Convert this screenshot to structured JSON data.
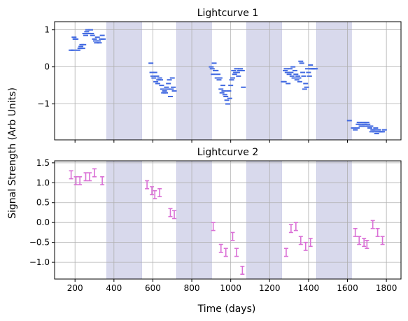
{
  "figure": {
    "xlabel": "Time (days)",
    "ylabel": "Signal Strength (Arb Units)"
  },
  "shaded_intervals": [
    [
      363,
      543
    ],
    [
      722,
      902
    ],
    [
      1082,
      1262
    ],
    [
      1441,
      1621
    ]
  ],
  "shade_color": "#d8d9ec",
  "chart_data": [
    {
      "type": "scatter",
      "title": "Lightcurve 1",
      "xlim": [
        95,
        1875
      ],
      "ylim": [
        -1.97,
        1.22
      ],
      "xticks": [
        200,
        400,
        600,
        800,
        1000,
        1200,
        1400,
        1600,
        1800
      ],
      "yticks": [
        1,
        0,
        -1
      ],
      "ytick_labels": [
        "1",
        "0",
        "−1"
      ],
      "grid": true,
      "xtick_labels_visible": false,
      "marker_color": "#4169e1",
      "marker": "short horizontal dash",
      "series": [
        {
          "x": [
            180,
            190,
            195,
            200,
            205,
            215,
            225,
            230,
            235,
            240,
            245,
            250,
            255,
            260,
            265,
            270,
            280,
            285,
            290,
            300,
            305,
            310,
            315,
            320,
            325,
            335,
            340,
            345,
            590,
            595,
            600,
            605,
            610,
            615,
            620,
            625,
            630,
            635,
            640,
            645,
            650,
            655,
            660,
            665,
            670,
            675,
            680,
            685,
            690,
            695,
            700,
            705,
            710,
            900,
            905,
            910,
            915,
            920,
            925,
            930,
            935,
            940,
            945,
            950,
            955,
            960,
            965,
            970,
            975,
            980,
            985,
            990,
            995,
            1000,
            1005,
            1010,
            1015,
            1020,
            1025,
            1030,
            1035,
            1040,
            1045,
            1050,
            1055,
            1060,
            1065,
            1270,
            1275,
            1280,
            1285,
            1290,
            1295,
            1300,
            1305,
            1310,
            1315,
            1320,
            1325,
            1330,
            1335,
            1340,
            1345,
            1350,
            1355,
            1360,
            1365,
            1370,
            1375,
            1380,
            1385,
            1390,
            1395,
            1400,
            1405,
            1410,
            1415,
            1420,
            1425,
            1430,
            1435,
            1610,
            1630,
            1640,
            1650,
            1655,
            1660,
            1665,
            1670,
            1675,
            1680,
            1685,
            1690,
            1695,
            1700,
            1705,
            1710,
            1715,
            1720,
            1725,
            1730,
            1735,
            1740,
            1745,
            1750,
            1755,
            1760,
            1765,
            1770,
            1775,
            1780,
            1790
          ],
          "y": [
            0.45,
            0.45,
            0.8,
            0.75,
            0.75,
            0.45,
            0.5,
            0.55,
            0.6,
            0.5,
            0.6,
            0.9,
            0.85,
            0.95,
            1.0,
            0.9,
            1.0,
            0.9,
            0.85,
            0.75,
            0.7,
            0.65,
            0.8,
            0.7,
            0.65,
            0.75,
            0.85,
            0.75,
            0.1,
            -0.15,
            -0.25,
            -0.3,
            -0.15,
            -0.4,
            -0.25,
            -0.45,
            -0.35,
            -0.3,
            -0.35,
            -0.5,
            -0.6,
            -0.7,
            -0.65,
            -0.7,
            -0.55,
            -0.6,
            -0.45,
            -0.35,
            -0.8,
            -0.6,
            -0.3,
            -0.55,
            -0.65,
            0.0,
            -0.05,
            -0.2,
            0.1,
            -0.1,
            -0.1,
            -0.3,
            -0.2,
            -0.35,
            -0.3,
            -0.6,
            -0.7,
            -0.5,
            -0.65,
            -0.75,
            -0.8,
            -0.9,
            -1.0,
            -0.65,
            -0.85,
            -0.5,
            -0.35,
            -0.3,
            -0.1,
            -0.2,
            -0.15,
            -0.05,
            -0.15,
            -0.25,
            -0.1,
            -0.05,
            -0.1,
            -0.1,
            -0.55,
            -0.4,
            -0.4,
            -0.1,
            -0.05,
            -0.15,
            -0.45,
            -0.2,
            -0.05,
            -0.15,
            -0.25,
            0.0,
            -0.3,
            -0.1,
            -0.2,
            -0.35,
            -0.25,
            -0.3,
            -0.4,
            0.15,
            0.1,
            -0.15,
            -0.25,
            -0.6,
            -0.45,
            -0.55,
            -0.05,
            -0.15,
            -0.25,
            0.05,
            -0.05,
            -0.05,
            -0.05,
            -0.05,
            -0.05,
            -1.45,
            -1.65,
            -1.7,
            -1.65,
            -1.55,
            -1.5,
            -1.55,
            -1.6,
            -1.6,
            -1.5,
            -1.55,
            -1.55,
            -1.6,
            -1.5,
            -1.55,
            -1.6,
            -1.65,
            -1.6,
            -1.75,
            -1.7,
            -1.7,
            -1.75,
            -1.65,
            -1.8,
            -1.75,
            -1.7,
            -1.75,
            -1.75,
            -1.75,
            -1.75,
            -1.7
          ]
        }
      ]
    },
    {
      "type": "scatter",
      "title": "Lightcurve 2",
      "xlim": [
        95,
        1875
      ],
      "ylim": [
        -1.42,
        1.55
      ],
      "xticks": [
        200,
        400,
        600,
        800,
        1000,
        1200,
        1400,
        1600,
        1800
      ],
      "xtick_labels": [
        "200",
        "400",
        "600",
        "800",
        "1000",
        "1200",
        "1400",
        "1600",
        "1800"
      ],
      "yticks": [
        1.5,
        1.0,
        0.5,
        0.0,
        -0.5,
        -1.0
      ],
      "ytick_labels": [
        "1.5",
        "1.0",
        "0.5",
        "0.0",
        "−0.5",
        "−1.0"
      ],
      "grid": true,
      "marker_color": "#da70d6",
      "marker": "error bars",
      "yerr": 0.1,
      "series": [
        {
          "x": [
            180,
            205,
            225,
            255,
            275,
            300,
            340,
            570,
            595,
            610,
            635,
            690,
            710,
            910,
            950,
            975,
            1010,
            1030,
            1060,
            1285,
            1310,
            1335,
            1360,
            1385,
            1410,
            1640,
            1660,
            1685,
            1700,
            1730,
            1755,
            1780
          ],
          "y": [
            1.2,
            1.05,
            1.05,
            1.15,
            1.15,
            1.25,
            1.05,
            0.95,
            0.8,
            0.7,
            0.75,
            0.25,
            0.2,
            -0.1,
            -0.65,
            -0.75,
            -0.35,
            -0.75,
            -1.2,
            -0.75,
            -0.15,
            -0.1,
            -0.45,
            -0.6,
            -0.5,
            -0.25,
            -0.45,
            -0.5,
            -0.55,
            -0.05,
            -0.25,
            -0.45
          ]
        }
      ]
    }
  ]
}
